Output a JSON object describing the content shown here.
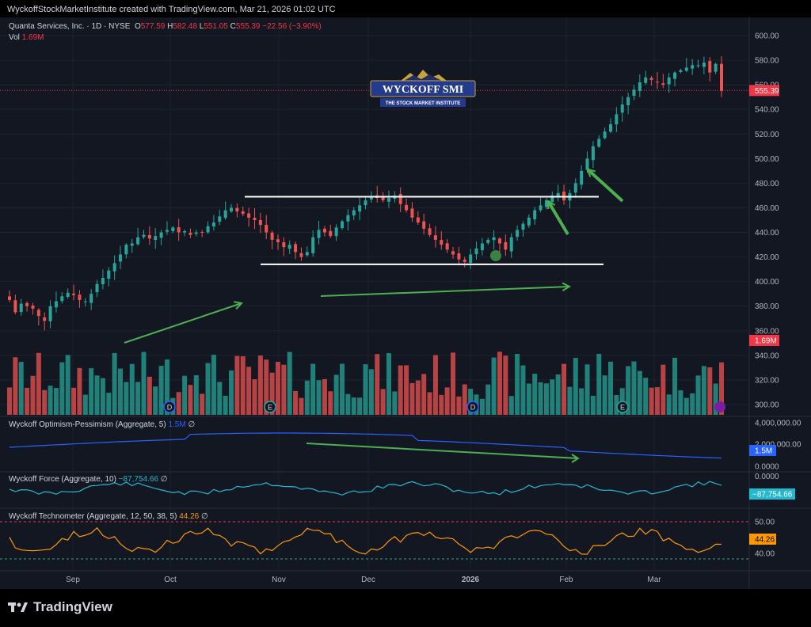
{
  "header": {
    "credit": "WyckoffStockMarketInstitute created with TradingView.com, Mar 21, 2026 01:02 UTC"
  },
  "symbol": {
    "name": "Quanta Services, Inc. · 1D · NYSE",
    "open_label": "O",
    "open": "577.59",
    "high_label": "H",
    "high": "582.48",
    "low_label": "L",
    "low": "551.05",
    "close_label": "C",
    "close": "555.39",
    "change": "−22.56 (−3.90%)",
    "vol_label": "Vol",
    "vol": "1.69M"
  },
  "logo": {
    "title": "WYCKOFF SMI",
    "subtitle": "THE STOCK MARKET INSTITUTE"
  },
  "indicators": [
    {
      "name": "Wyckoff Optimism-Pessimism (Aggregate, 5)",
      "value": "1.5M",
      "flag": "∅",
      "color": "#2962ff"
    },
    {
      "name": "Wyckoff Force (Aggregate, 10)",
      "value": "−87,754.66",
      "flag": "∅",
      "color": "#22b8cf"
    },
    {
      "name": "Wyckoff Technometer (Aggregate, 12, 50, 38, 5)",
      "value": "44.26",
      "flag": "∅",
      "color": "#ff9800"
    }
  ],
  "brand": {
    "name": "TradingView"
  },
  "colors": {
    "up": "#26a69a",
    "down": "#ef5350",
    "background": "#131722",
    "grid": "#2a2e39",
    "text": "#b2b5be",
    "annotation_line": "#ffffff",
    "annotation_arrow": "#4caf50"
  },
  "chart_data": [
    {
      "type": "candlestick",
      "title": "Quanta Services, Inc. · 1D · NYSE",
      "ylim": [
        290,
        610
      ],
      "y_ticks": [
        "600.00",
        "580.00",
        "560.00",
        "540.00",
        "520.00",
        "500.00",
        "480.00",
        "460.00",
        "440.00",
        "420.00",
        "400.00",
        "380.00",
        "360.00",
        "340.00",
        "320.00",
        "300.00"
      ],
      "x_ticks": [
        "Sep",
        "Oct",
        "Nov",
        "Dec",
        "2026",
        "Feb",
        "Mar"
      ],
      "last_price_label": "555.39",
      "volume_label": "1.69M",
      "event_markers": [
        "D",
        "E",
        "D",
        "E"
      ],
      "close_series_estimate": [
        385,
        375,
        382,
        380,
        378,
        372,
        368,
        380,
        384,
        388,
        391,
        389,
        385,
        384,
        390,
        398,
        403,
        409,
        415,
        422,
        430,
        431,
        436,
        438,
        435,
        437,
        440,
        442,
        444,
        440,
        441,
        438,
        440,
        440,
        445,
        448,
        453,
        458,
        460,
        457,
        455,
        452,
        450,
        446,
        440,
        434,
        432,
        428,
        430,
        424,
        420,
        424,
        436,
        442,
        440,
        437,
        444,
        449,
        454,
        458,
        462,
        466,
        469,
        468,
        466,
        468,
        470,
        463,
        458,
        452,
        448,
        443,
        438,
        434,
        430,
        426,
        422,
        418,
        416,
        422,
        427,
        431,
        434,
        436,
        431,
        426,
        436,
        442,
        447,
        452,
        458,
        462,
        466,
        470,
        472,
        466,
        472,
        480,
        490,
        500,
        510,
        516,
        522,
        528,
        536,
        544,
        550,
        556,
        562,
        566,
        564,
        562,
        560,
        566,
        570,
        572,
        574,
        576,
        576,
        578,
        570,
        577,
        555
      ]
    },
    {
      "type": "line",
      "title": "Wyckoff Optimism-Pessimism (Aggregate, 5)",
      "y_ticks": [
        "4,000,000.00",
        "2,000,000.00",
        "0.0000"
      ],
      "last_value": "1.5M"
    },
    {
      "type": "line",
      "title": "Wyckoff Force (Aggregate, 10)",
      "y_ticks": [
        "0.0000"
      ],
      "last_value": "−87,754.66"
    },
    {
      "type": "line",
      "title": "Wyckoff Technometer (Aggregate, 12, 50, 38, 5)",
      "y_ticks": [
        "50.00",
        "40.00"
      ],
      "last_value": "44.26"
    }
  ]
}
